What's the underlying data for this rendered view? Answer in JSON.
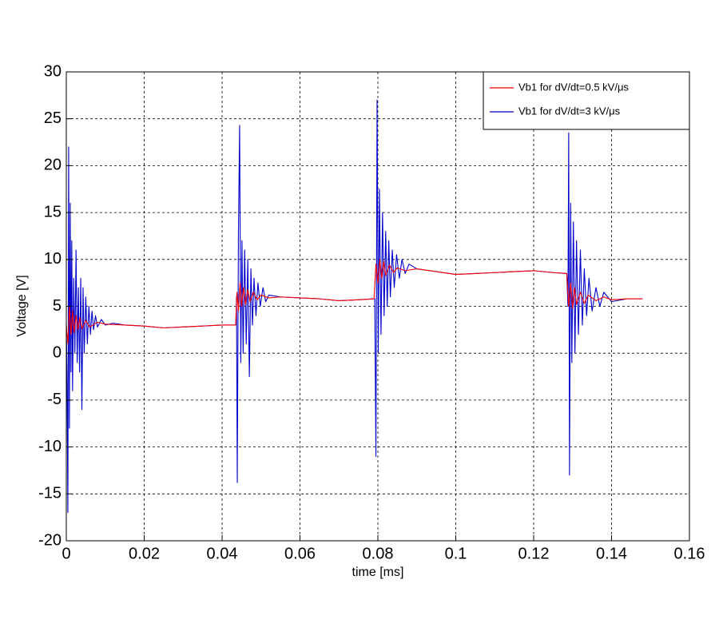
{
  "chart_data": {
    "type": "line",
    "xlabel": "time [ms]",
    "ylabel": "Voltage [V]",
    "xlim": [
      0,
      0.16
    ],
    "ylim": [
      -20,
      30
    ],
    "xticks": [
      0,
      0.02,
      0.04,
      0.06,
      0.08,
      0.1,
      0.12,
      0.14,
      0.16
    ],
    "yticks": [
      -20,
      -15,
      -10,
      -5,
      0,
      5,
      10,
      15,
      20,
      25,
      30
    ],
    "grid": true,
    "legend": "northeast",
    "series": [
      {
        "name": "Vb1  for  dV/dt=0.5 kV/μs",
        "color": "#ff0000",
        "x": [
          0,
          0.0004,
          0.0008,
          0.0012,
          0.0016,
          0.002,
          0.0025,
          0.003,
          0.0035,
          0.004,
          0.005,
          0.006,
          0.008,
          0.01,
          0.015,
          0.02,
          0.025,
          0.03,
          0.035,
          0.04,
          0.0435,
          0.0438,
          0.0442,
          0.0446,
          0.045,
          0.0455,
          0.046,
          0.0466,
          0.0472,
          0.048,
          0.049,
          0.05,
          0.052,
          0.055,
          0.06,
          0.065,
          0.07,
          0.075,
          0.079,
          0.0795,
          0.08,
          0.0805,
          0.081,
          0.0815,
          0.082,
          0.083,
          0.084,
          0.085,
          0.087,
          0.09,
          0.095,
          0.1,
          0.105,
          0.11,
          0.115,
          0.12,
          0.125,
          0.1285,
          0.129,
          0.1295,
          0.13,
          0.1305,
          0.131,
          0.132,
          0.133,
          0.134,
          0.136,
          0.138,
          0.14,
          0.144,
          0.148
        ],
        "values": [
          3,
          1,
          5,
          2,
          4.5,
          2.2,
          4,
          2.5,
          3.8,
          2.6,
          3.5,
          2.8,
          3.3,
          3.1,
          3.0,
          2.9,
          2.7,
          2.8,
          2.9,
          3.0,
          3.0,
          6.5,
          4.5,
          7.5,
          5,
          7,
          5.2,
          6.8,
          5.5,
          6.5,
          5.7,
          6.2,
          5.9,
          6.0,
          5.9,
          5.8,
          5.6,
          5.7,
          5.8,
          9.5,
          7.5,
          10,
          8,
          9.8,
          8.3,
          9.4,
          8.6,
          9.1,
          8.8,
          9.0,
          8.7,
          8.4,
          8.5,
          8.6,
          8.7,
          8.8,
          8.6,
          8.5,
          5,
          7.5,
          4.8,
          7,
          5.2,
          6.5,
          5.3,
          6.2,
          5.6,
          6.0,
          5.7,
          5.8,
          5.8
        ]
      },
      {
        "name": "Vb1  for dV/dt=3 kV/μs",
        "color": "#0000cc",
        "x": [
          0,
          0.0002,
          0.0004,
          0.0006,
          0.0008,
          0.001,
          0.0012,
          0.0014,
          0.0016,
          0.0019,
          0.0022,
          0.0025,
          0.0028,
          0.0031,
          0.0034,
          0.0037,
          0.004,
          0.0043,
          0.0046,
          0.005,
          0.0054,
          0.0058,
          0.0062,
          0.0066,
          0.007,
          0.0075,
          0.008,
          0.009,
          0.01,
          0.012,
          0.015,
          0.02,
          0.025,
          0.03,
          0.035,
          0.04,
          0.0435,
          0.0437,
          0.0439,
          0.0442,
          0.0445,
          0.0448,
          0.0451,
          0.0454,
          0.0458,
          0.0462,
          0.0466,
          0.047,
          0.0474,
          0.0478,
          0.0482,
          0.0487,
          0.0492,
          0.0498,
          0.0505,
          0.0512,
          0.052,
          0.055,
          0.06,
          0.065,
          0.07,
          0.075,
          0.0792,
          0.0795,
          0.0798,
          0.0801,
          0.0804,
          0.0808,
          0.0812,
          0.0816,
          0.082,
          0.0824,
          0.0828,
          0.0832,
          0.0837,
          0.0842,
          0.0848,
          0.0855,
          0.0862,
          0.087,
          0.088,
          0.09,
          0.095,
          0.1,
          0.105,
          0.11,
          0.115,
          0.12,
          0.125,
          0.1285,
          0.1288,
          0.129,
          0.1292,
          0.1295,
          0.1298,
          0.1302,
          0.1306,
          0.131,
          0.1315,
          0.132,
          0.1325,
          0.133,
          0.1336,
          0.1342,
          0.135,
          0.136,
          0.137,
          0.138,
          0.14,
          0.144,
          0.148
        ],
        "values": [
          3,
          -3,
          -17,
          22,
          -8,
          16,
          -2,
          12,
          -4,
          8,
          0,
          11,
          -1,
          7,
          -2,
          8,
          -6,
          7,
          0,
          6,
          1,
          5,
          2,
          4.5,
          2.5,
          4,
          2.8,
          3.6,
          3,
          3.2,
          3.0,
          2.9,
          2.7,
          2.8,
          2.9,
          3.0,
          3.0,
          6,
          -13.8,
          13,
          24.3,
          -1,
          12,
          0,
          11,
          1,
          10,
          -2.5,
          9,
          3,
          8,
          4,
          7.5,
          5,
          7,
          5.5,
          6.2,
          6.0,
          5.9,
          5.8,
          5.6,
          5.7,
          5.8,
          -11,
          27,
          0,
          17.5,
          2,
          15,
          4,
          13,
          5,
          12,
          6,
          11,
          7,
          10.5,
          8,
          10,
          8.5,
          9.5,
          9.0,
          8.7,
          8.4,
          8.5,
          8.6,
          8.7,
          8.8,
          8.6,
          8.5,
          5,
          23.5,
          -13,
          16,
          -1,
          14,
          0,
          12,
          2,
          11,
          3,
          9,
          4,
          8,
          4.5,
          7,
          5,
          6.5,
          5.5,
          5.8,
          5.8
        ]
      }
    ]
  }
}
